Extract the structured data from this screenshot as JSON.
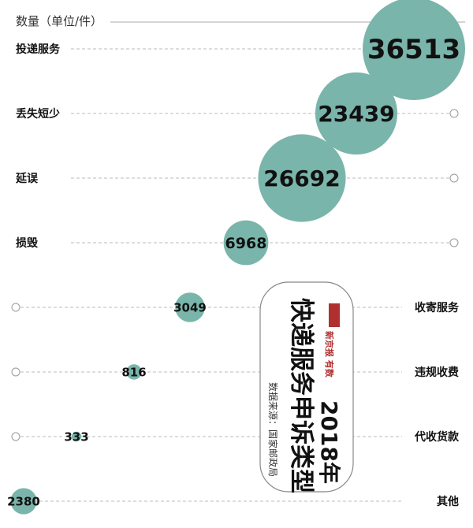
{
  "chart_data": {
    "type": "bubble",
    "title": "快递服务申诉类型",
    "year": "2018年",
    "source": "数据来源：国家邮政局",
    "brand": "新京报 有数",
    "unit_label": "数量（单位/件）",
    "categories": [
      "投递服务",
      "丢失短少",
      "延误",
      "损毁",
      "收寄服务",
      "违规收费",
      "代收货款",
      "其他"
    ],
    "values": [
      36513,
      23439,
      26692,
      6968,
      3049,
      816,
      333,
      2380
    ],
    "bubble_color": "#7ab5ab",
    "grid": "dashed"
  }
}
